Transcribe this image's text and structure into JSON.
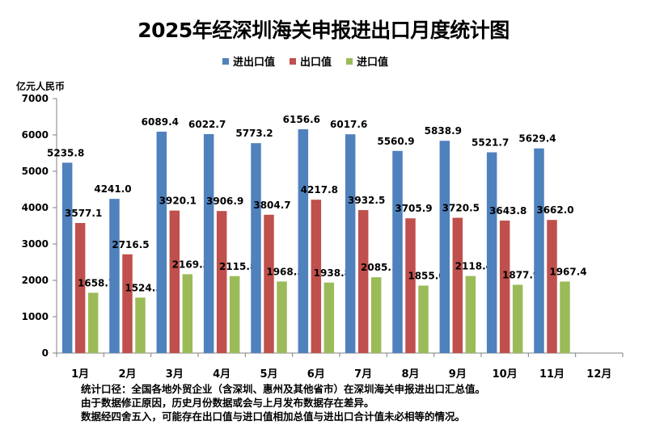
{
  "chart_data": {
    "type": "bar",
    "title": "2025年经深圳海关申报进出口月度统计图",
    "ylabel": "亿元人民币",
    "xlabel": "",
    "ylim": [
      0,
      7000
    ],
    "yticks": [
      "0",
      "1000",
      "2000",
      "3000",
      "4000",
      "5000",
      "6000",
      "7000"
    ],
    "grid": false,
    "legend_position": "top",
    "categories": [
      "1月",
      "2月",
      "3月",
      "4月",
      "5月",
      "6月",
      "7月",
      "8月",
      "9月",
      "10月",
      "11月",
      "12月"
    ],
    "series": [
      {
        "name": "进出口值",
        "color": "#4F81BD",
        "values": [
          5235.8,
          4241.0,
          6089.4,
          6022.7,
          5773.2,
          6156.6,
          6017.6,
          5560.9,
          5838.9,
          5521.7,
          5629.4,
          null
        ],
        "labels": [
          "5235.8",
          "4241.0",
          "6089.4",
          "6022.7",
          "5773.2",
          "6156.6",
          "6017.6",
          "5560.9",
          "5838.9",
          "5521.7",
          "5629.4",
          ""
        ]
      },
      {
        "name": "出口值",
        "color": "#C0504D",
        "values": [
          3577.1,
          2716.5,
          3920.1,
          3906.9,
          3804.7,
          4217.8,
          3932.5,
          3705.9,
          3720.5,
          3643.8,
          3662.0,
          null
        ],
        "labels": [
          "3577.1",
          "2716.5",
          "3920.1",
          "3906.9",
          "3804.7",
          "4217.8",
          "3932.5",
          "3705.9",
          "3720.5",
          "3643.8",
          "3662.0",
          ""
        ]
      },
      {
        "name": "进口值",
        "color": "#9BBB59",
        "values": [
          1658.7,
          1524.5,
          2169.3,
          2115.8,
          1968.5,
          1938.8,
          2085.1,
          1855.0,
          2118.4,
          1877.9,
          1967.4,
          null
        ],
        "labels": [
          "1658.7",
          "1524.5",
          "2169.3",
          "2115.8",
          "1968.5",
          "1938.8",
          "2085.1",
          "1855.0",
          "2118.4",
          "1877.9",
          "1967.4",
          ""
        ]
      }
    ]
  },
  "notes": [
    "统计口径：全国各地外贸企业（含深圳、惠州及其他省市）在深圳海关申报进出口汇总值。",
    "由于数据修正原因，历史月份数据或会与上月发布数据存在差异。",
    "数据经四舍五入，可能存在出口值与进口值相加总值与进出口合计值未必相等的情况。"
  ]
}
